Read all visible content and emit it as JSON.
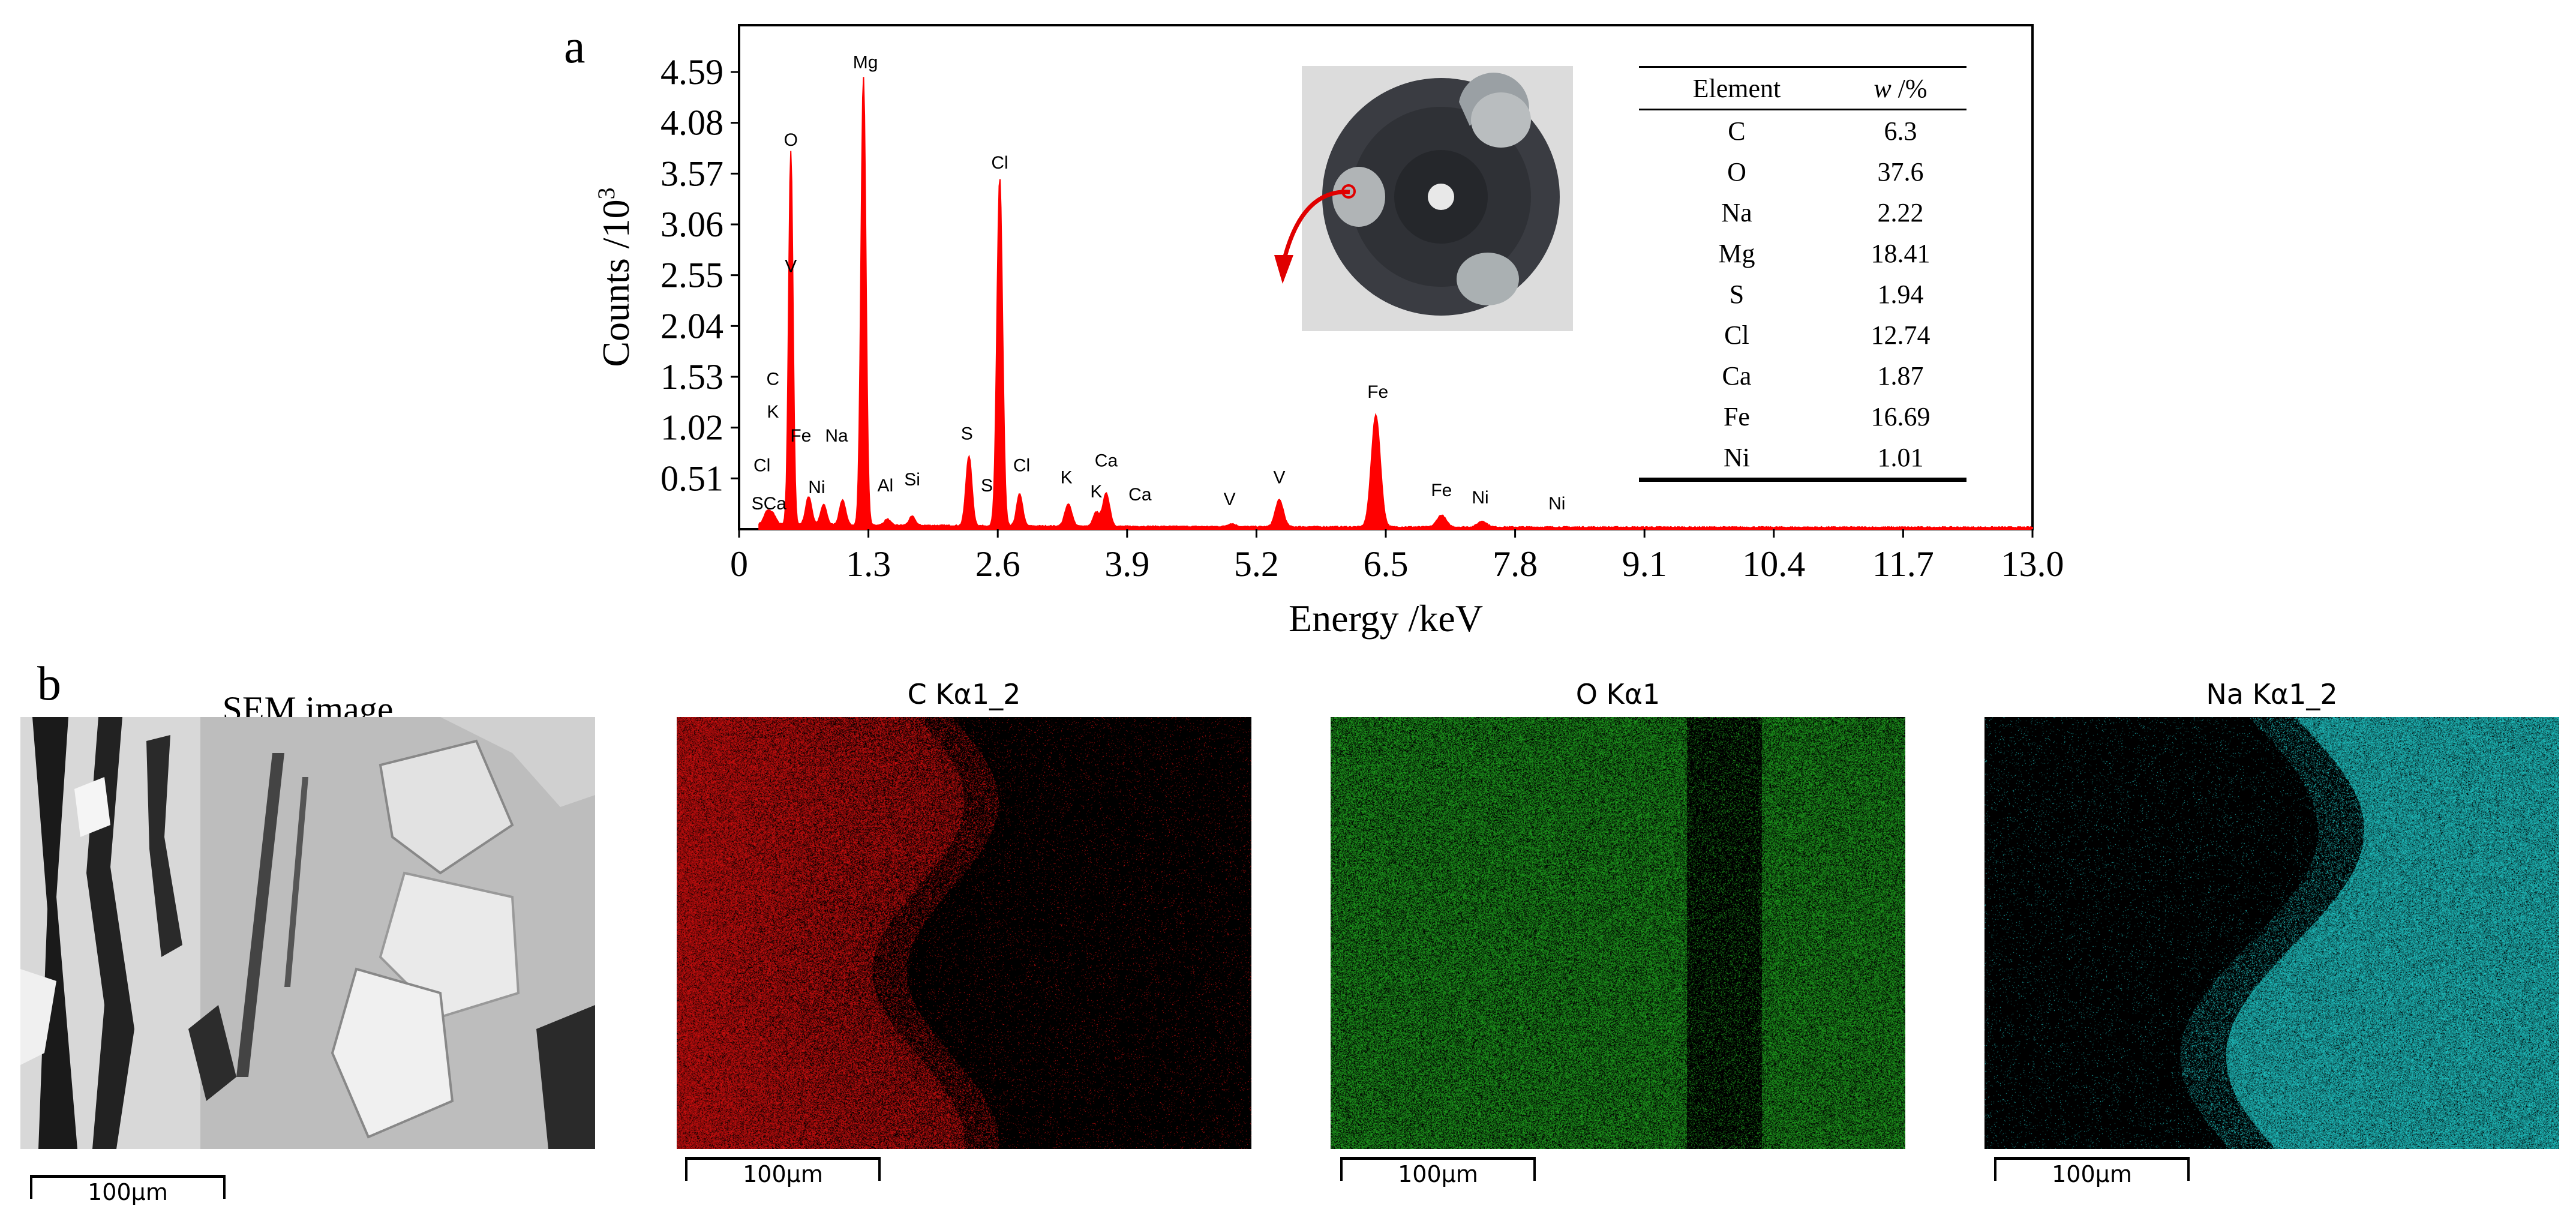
{
  "panel_labels": {
    "a": "a",
    "b": "b"
  },
  "chart_data": {
    "type": "line",
    "title": "",
    "xlabel": "Energy /keV",
    "ylabel": "Counts /10",
    "ylabel_sup": "3",
    "xlim": [
      0,
      13.0
    ],
    "ylim": [
      0,
      4.59
    ],
    "x_ticks": [
      "0",
      "1.3",
      "2.6",
      "3.9",
      "5.2",
      "6.5",
      "7.8",
      "9.1",
      "10.4",
      "11.7",
      "13.0"
    ],
    "x_tick_values": [
      0,
      1.3,
      2.6,
      3.9,
      5.2,
      6.5,
      7.8,
      9.1,
      10.4,
      11.7,
      13.0
    ],
    "y_ticks": [
      "0.51",
      "1.02",
      "1.53",
      "2.04",
      "2.55",
      "3.06",
      "3.57",
      "4.08",
      "4.59"
    ],
    "y_tick_values": [
      0.51,
      1.02,
      1.53,
      2.04,
      2.55,
      3.06,
      3.57,
      4.08,
      4.59
    ],
    "series_color": "#ff0000",
    "peaks": [
      {
        "x": 0.28,
        "y": 0.12,
        "w": 0.03
      },
      {
        "x": 0.34,
        "y": 0.1,
        "w": 0.03
      },
      {
        "x": 0.52,
        "y": 3.75,
        "w": 0.022
      },
      {
        "x": 0.7,
        "y": 0.28,
        "w": 0.03
      },
      {
        "x": 0.85,
        "y": 0.2,
        "w": 0.03
      },
      {
        "x": 1.04,
        "y": 0.25,
        "w": 0.03
      },
      {
        "x": 1.25,
        "y": 4.5,
        "w": 0.025
      },
      {
        "x": 1.49,
        "y": 0.06,
        "w": 0.03
      },
      {
        "x": 1.74,
        "y": 0.09,
        "w": 0.03
      },
      {
        "x": 2.31,
        "y": 0.7,
        "w": 0.03
      },
      {
        "x": 2.62,
        "y": 3.5,
        "w": 0.028
      },
      {
        "x": 2.82,
        "y": 0.32,
        "w": 0.03
      },
      {
        "x": 3.31,
        "y": 0.22,
        "w": 0.035
      },
      {
        "x": 3.59,
        "y": 0.14,
        "w": 0.03
      },
      {
        "x": 3.69,
        "y": 0.33,
        "w": 0.035
      },
      {
        "x": 4.95,
        "y": 0.03,
        "w": 0.04
      },
      {
        "x": 5.43,
        "y": 0.27,
        "w": 0.04
      },
      {
        "x": 6.4,
        "y": 1.12,
        "w": 0.045
      },
      {
        "x": 7.06,
        "y": 0.12,
        "w": 0.045
      },
      {
        "x": 7.47,
        "y": 0.06,
        "w": 0.045
      }
    ],
    "peak_labels": [
      {
        "text": "O",
        "x": 0.52,
        "y": 3.85
      },
      {
        "text": "Mg",
        "x": 1.27,
        "y": 4.63
      },
      {
        "text": "Cl",
        "x": 2.62,
        "y": 3.62
      },
      {
        "text": "V",
        "x": 0.52,
        "y": 2.58
      },
      {
        "text": "C",
        "x": 0.34,
        "y": 1.45
      },
      {
        "text": "K",
        "x": 0.34,
        "y": 1.12
      },
      {
        "text": "Fe",
        "x": 0.62,
        "y": 0.88
      },
      {
        "text": "Na",
        "x": 0.98,
        "y": 0.88
      },
      {
        "text": "Cl",
        "x": 0.23,
        "y": 0.58
      },
      {
        "text": "Ni",
        "x": 0.78,
        "y": 0.36
      },
      {
        "text": "SCa",
        "x": 0.3,
        "y": 0.2
      },
      {
        "text": "Al",
        "x": 1.47,
        "y": 0.38
      },
      {
        "text": "Si",
        "x": 1.74,
        "y": 0.44
      },
      {
        "text": "S",
        "x": 2.29,
        "y": 0.9
      },
      {
        "text": "S",
        "x": 2.49,
        "y": 0.38
      },
      {
        "text": "Cl",
        "x": 2.84,
        "y": 0.58
      },
      {
        "text": "K",
        "x": 3.29,
        "y": 0.46
      },
      {
        "text": "Ca",
        "x": 3.69,
        "y": 0.63
      },
      {
        "text": "K",
        "x": 3.59,
        "y": 0.32
      },
      {
        "text": "Ca",
        "x": 4.03,
        "y": 0.29
      },
      {
        "text": "V",
        "x": 4.93,
        "y": 0.24
      },
      {
        "text": "V",
        "x": 5.43,
        "y": 0.46
      },
      {
        "text": "Fe",
        "x": 6.42,
        "y": 1.32
      },
      {
        "text": "Fe",
        "x": 7.06,
        "y": 0.33
      },
      {
        "text": "Ni",
        "x": 7.45,
        "y": 0.26
      },
      {
        "text": "Ni",
        "x": 8.22,
        "y": 0.2
      }
    ]
  },
  "composition_table": {
    "headers": {
      "element": "Element",
      "w": "w",
      "w_unit": " /%"
    },
    "rows": [
      {
        "element": "C",
        "value": "6.3"
      },
      {
        "element": "O",
        "value": "37.6"
      },
      {
        "element": "Na",
        "value": "2.22"
      },
      {
        "element": "Mg",
        "value": "18.41"
      },
      {
        "element": "S",
        "value": "1.94"
      },
      {
        "element": "Cl",
        "value": "12.74"
      },
      {
        "element": "Ca",
        "value": "1.87"
      },
      {
        "element": "Fe",
        "value": "16.69"
      },
      {
        "element": "Ni",
        "value": "1.01"
      }
    ]
  },
  "maps": {
    "sem": {
      "title": "SEM image",
      "scale": "100μm"
    },
    "carbon": {
      "title": "C Kα1_2",
      "scale": "100μm",
      "color": "#e01010"
    },
    "oxygen": {
      "title": "O Kα1",
      "scale": "100μm",
      "color": "#22b022"
    },
    "sodium": {
      "title": "Na Kα1_2",
      "scale": "100μm",
      "color": "#22d0d0"
    }
  }
}
